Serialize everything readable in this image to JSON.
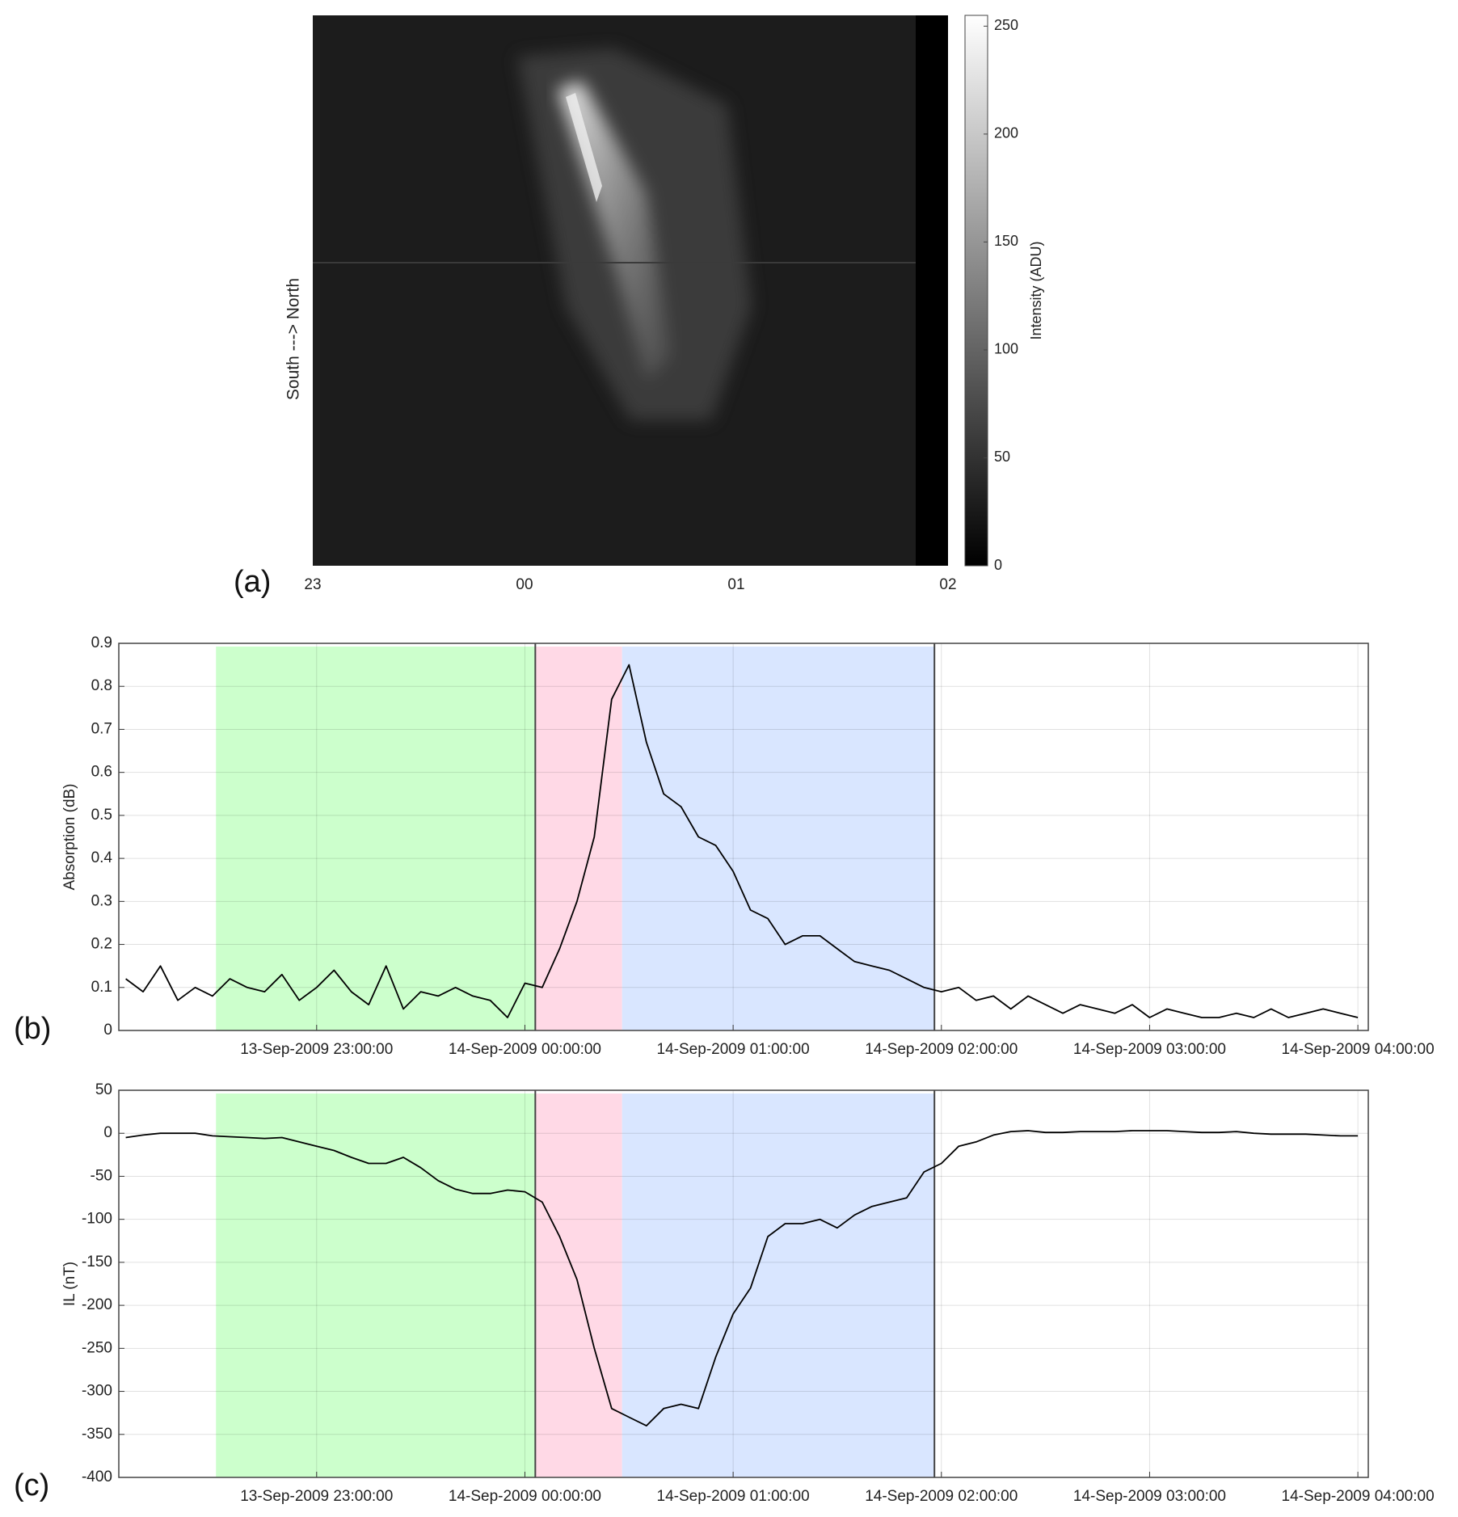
{
  "chart_data": [
    {
      "type": "image",
      "panel_label": "(a)",
      "ylabel": "South ---> North",
      "categories": [
        "23",
        "00",
        "01",
        "02"
      ],
      "colorbar": {
        "label": "Intensity (ADU)",
        "lim": [
          0,
          255
        ],
        "ticks": [
          0,
          50,
          100,
          150,
          200,
          250
        ]
      }
    },
    {
      "type": "line",
      "panel_label": "(b)",
      "ylabel": "Absorption (dB)",
      "color": "#000000",
      "grid": true,
      "ylim": [
        0,
        0.9
      ],
      "yticks": [
        0,
        0.1,
        0.2,
        0.3,
        0.4,
        0.5,
        0.6,
        0.7,
        0.8,
        0.9
      ],
      "xlim": [
        "13-Sep-2009 22:03:00",
        "14-Sep-2009 04:03:00"
      ],
      "xticks": [
        "13-Sep-2009 23:00:00",
        "14-Sep-2009 00:00:00",
        "14-Sep-2009 01:00:00",
        "14-Sep-2009 02:00:00",
        "14-Sep-2009 03:00:00",
        "14-Sep-2009 04:00:00"
      ],
      "spans": [
        {
          "start": "13-Sep-2009 22:31:00",
          "end": "14-Sep-2009 00:03:00",
          "color": "#ccffcc"
        },
        {
          "start": "14-Sep-2009 00:03:00",
          "end": "14-Sep-2009 00:28:00",
          "color": "#ffd9e6"
        },
        {
          "start": "14-Sep-2009 00:28:00",
          "end": "14-Sep-2009 01:58:00",
          "color": "#d9e6ff"
        }
      ],
      "vlines": [
        "14-Sep-2009 00:03:00",
        "14-Sep-2009 01:58:00"
      ],
      "x": [
        "13-Sep-2009 22:05:00",
        "13-Sep-2009 22:10:00",
        "13-Sep-2009 22:15:00",
        "13-Sep-2009 22:20:00",
        "13-Sep-2009 22:25:00",
        "13-Sep-2009 22:30:00",
        "13-Sep-2009 22:35:00",
        "13-Sep-2009 22:40:00",
        "13-Sep-2009 22:45:00",
        "13-Sep-2009 22:50:00",
        "13-Sep-2009 22:55:00",
        "13-Sep-2009 23:00:00",
        "13-Sep-2009 23:05:00",
        "13-Sep-2009 23:10:00",
        "13-Sep-2009 23:15:00",
        "13-Sep-2009 23:20:00",
        "13-Sep-2009 23:25:00",
        "13-Sep-2009 23:30:00",
        "13-Sep-2009 23:35:00",
        "13-Sep-2009 23:40:00",
        "13-Sep-2009 23:45:00",
        "13-Sep-2009 23:50:00",
        "13-Sep-2009 23:55:00",
        "14-Sep-2009 00:00:00",
        "14-Sep-2009 00:05:00",
        "14-Sep-2009 00:10:00",
        "14-Sep-2009 00:15:00",
        "14-Sep-2009 00:20:00",
        "14-Sep-2009 00:25:00",
        "14-Sep-2009 00:30:00",
        "14-Sep-2009 00:35:00",
        "14-Sep-2009 00:40:00",
        "14-Sep-2009 00:45:00",
        "14-Sep-2009 00:50:00",
        "14-Sep-2009 00:55:00",
        "14-Sep-2009 01:00:00",
        "14-Sep-2009 01:05:00",
        "14-Sep-2009 01:10:00",
        "14-Sep-2009 01:15:00",
        "14-Sep-2009 01:20:00",
        "14-Sep-2009 01:25:00",
        "14-Sep-2009 01:30:00",
        "14-Sep-2009 01:35:00",
        "14-Sep-2009 01:40:00",
        "14-Sep-2009 01:45:00",
        "14-Sep-2009 01:50:00",
        "14-Sep-2009 01:55:00",
        "14-Sep-2009 02:00:00",
        "14-Sep-2009 02:05:00",
        "14-Sep-2009 02:10:00",
        "14-Sep-2009 02:15:00",
        "14-Sep-2009 02:20:00",
        "14-Sep-2009 02:25:00",
        "14-Sep-2009 02:30:00",
        "14-Sep-2009 02:35:00",
        "14-Sep-2009 02:40:00",
        "14-Sep-2009 02:45:00",
        "14-Sep-2009 02:50:00",
        "14-Sep-2009 02:55:00",
        "14-Sep-2009 03:00:00",
        "14-Sep-2009 03:05:00",
        "14-Sep-2009 03:10:00",
        "14-Sep-2009 03:15:00",
        "14-Sep-2009 03:20:00",
        "14-Sep-2009 03:25:00",
        "14-Sep-2009 03:30:00",
        "14-Sep-2009 03:35:00",
        "14-Sep-2009 03:40:00",
        "14-Sep-2009 03:45:00",
        "14-Sep-2009 03:50:00",
        "14-Sep-2009 03:55:00",
        "14-Sep-2009 04:00:00"
      ],
      "values": [
        0.12,
        0.09,
        0.15,
        0.07,
        0.1,
        0.08,
        0.12,
        0.1,
        0.09,
        0.13,
        0.07,
        0.1,
        0.14,
        0.09,
        0.06,
        0.15,
        0.05,
        0.09,
        0.08,
        0.1,
        0.08,
        0.07,
        0.03,
        0.11,
        0.1,
        0.19,
        0.3,
        0.45,
        0.77,
        0.85,
        0.67,
        0.55,
        0.52,
        0.45,
        0.43,
        0.37,
        0.28,
        0.26,
        0.2,
        0.22,
        0.22,
        0.19,
        0.16,
        0.15,
        0.14,
        0.12,
        0.1,
        0.09,
        0.1,
        0.07,
        0.08,
        0.05,
        0.08,
        0.06,
        0.04,
        0.06,
        0.05,
        0.04,
        0.06,
        0.03,
        0.05,
        0.04,
        0.03,
        0.03,
        0.04,
        0.03,
        0.05,
        0.03,
        0.04,
        0.05,
        0.04,
        0.03
      ]
    },
    {
      "type": "line",
      "panel_label": "(c)",
      "ylabel": "IL (nT)",
      "color": "#000000",
      "grid": true,
      "ylim": [
        -400,
        50
      ],
      "yticks": [
        -400,
        -350,
        -300,
        -250,
        -200,
        -150,
        -100,
        -50,
        0,
        50
      ],
      "xlim": [
        "13-Sep-2009 22:03:00",
        "14-Sep-2009 04:03:00"
      ],
      "xticks": [
        "13-Sep-2009 23:00:00",
        "14-Sep-2009 00:00:00",
        "14-Sep-2009 01:00:00",
        "14-Sep-2009 02:00:00",
        "14-Sep-2009 03:00:00",
        "14-Sep-2009 04:00:00"
      ],
      "spans": [
        {
          "start": "13-Sep-2009 22:31:00",
          "end": "14-Sep-2009 00:03:00",
          "color": "#ccffcc"
        },
        {
          "start": "14-Sep-2009 00:03:00",
          "end": "14-Sep-2009 00:28:00",
          "color": "#ffd9e6"
        },
        {
          "start": "14-Sep-2009 00:28:00",
          "end": "14-Sep-2009 01:58:00",
          "color": "#d9e6ff"
        }
      ],
      "vlines": [
        "14-Sep-2009 00:03:00",
        "14-Sep-2009 01:58:00"
      ],
      "x": [
        "13-Sep-2009 22:05:00",
        "13-Sep-2009 22:10:00",
        "13-Sep-2009 22:15:00",
        "13-Sep-2009 22:20:00",
        "13-Sep-2009 22:25:00",
        "13-Sep-2009 22:30:00",
        "13-Sep-2009 22:35:00",
        "13-Sep-2009 22:40:00",
        "13-Sep-2009 22:45:00",
        "13-Sep-2009 22:50:00",
        "13-Sep-2009 22:55:00",
        "13-Sep-2009 23:00:00",
        "13-Sep-2009 23:05:00",
        "13-Sep-2009 23:10:00",
        "13-Sep-2009 23:15:00",
        "13-Sep-2009 23:20:00",
        "13-Sep-2009 23:25:00",
        "13-Sep-2009 23:30:00",
        "13-Sep-2009 23:35:00",
        "13-Sep-2009 23:40:00",
        "13-Sep-2009 23:45:00",
        "13-Sep-2009 23:50:00",
        "13-Sep-2009 23:55:00",
        "14-Sep-2009 00:00:00",
        "14-Sep-2009 00:05:00",
        "14-Sep-2009 00:10:00",
        "14-Sep-2009 00:15:00",
        "14-Sep-2009 00:20:00",
        "14-Sep-2009 00:25:00",
        "14-Sep-2009 00:30:00",
        "14-Sep-2009 00:35:00",
        "14-Sep-2009 00:40:00",
        "14-Sep-2009 00:45:00",
        "14-Sep-2009 00:50:00",
        "14-Sep-2009 00:55:00",
        "14-Sep-2009 01:00:00",
        "14-Sep-2009 01:05:00",
        "14-Sep-2009 01:10:00",
        "14-Sep-2009 01:15:00",
        "14-Sep-2009 01:20:00",
        "14-Sep-2009 01:25:00",
        "14-Sep-2009 01:30:00",
        "14-Sep-2009 01:35:00",
        "14-Sep-2009 01:40:00",
        "14-Sep-2009 01:45:00",
        "14-Sep-2009 01:50:00",
        "14-Sep-2009 01:55:00",
        "14-Sep-2009 02:00:00",
        "14-Sep-2009 02:05:00",
        "14-Sep-2009 02:10:00",
        "14-Sep-2009 02:15:00",
        "14-Sep-2009 02:20:00",
        "14-Sep-2009 02:25:00",
        "14-Sep-2009 02:30:00",
        "14-Sep-2009 02:35:00",
        "14-Sep-2009 02:40:00",
        "14-Sep-2009 02:45:00",
        "14-Sep-2009 02:50:00",
        "14-Sep-2009 02:55:00",
        "14-Sep-2009 03:00:00",
        "14-Sep-2009 03:05:00",
        "14-Sep-2009 03:10:00",
        "14-Sep-2009 03:15:00",
        "14-Sep-2009 03:20:00",
        "14-Sep-2009 03:25:00",
        "14-Sep-2009 03:30:00",
        "14-Sep-2009 03:35:00",
        "14-Sep-2009 03:40:00",
        "14-Sep-2009 03:45:00",
        "14-Sep-2009 03:50:00",
        "14-Sep-2009 03:55:00",
        "14-Sep-2009 04:00:00"
      ],
      "values": [
        -5,
        -2,
        0,
        0,
        0,
        -3,
        -4,
        -5,
        -6,
        -5,
        -10,
        -15,
        -20,
        -28,
        -35,
        -35,
        -28,
        -40,
        -55,
        -65,
        -70,
        -70,
        -66,
        -68,
        -80,
        -120,
        -170,
        -250,
        -320,
        -330,
        -340,
        -320,
        -315,
        -320,
        -260,
        -210,
        -180,
        -120,
        -105,
        -105,
        -100,
        -110,
        -95,
        -85,
        -80,
        -75,
        -45,
        -35,
        -15,
        -10,
        -2,
        2,
        3,
        1,
        1,
        2,
        2,
        2,
        3,
        3,
        3,
        2,
        1,
        1,
        2,
        0,
        -1,
        -1,
        -1,
        -2,
        -3,
        -3
      ]
    }
  ]
}
